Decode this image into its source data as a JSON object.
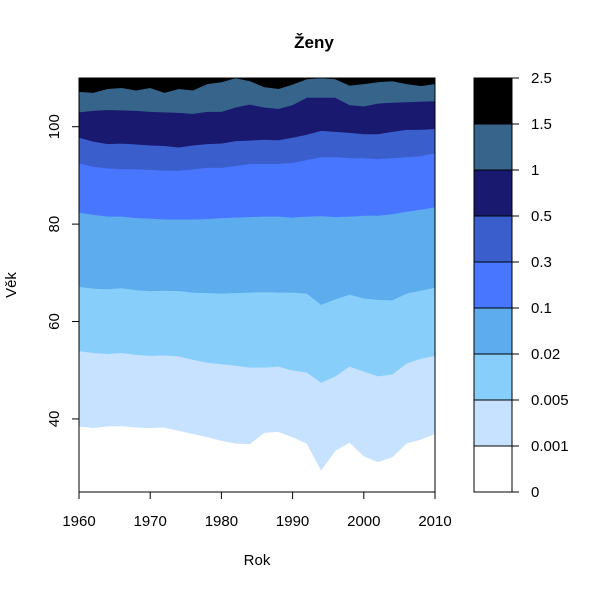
{
  "chart_data": {
    "type": "area",
    "title": "Ženy",
    "xlabel": "Rok",
    "ylabel": "Věk",
    "xlim": [
      1960,
      2010
    ],
    "ylim": [
      25,
      110
    ],
    "x_ticks": [
      "1960",
      "1970",
      "1980",
      "1990",
      "2000",
      "2010"
    ],
    "y_ticks": [
      "40",
      "60",
      "80",
      "100"
    ],
    "x_tick_values": [
      1960,
      1970,
      1980,
      1990,
      2000,
      2010
    ],
    "y_tick_values": [
      40,
      60,
      80,
      100
    ],
    "x": [
      1960,
      1962,
      1964,
      1966,
      1968,
      1970,
      1972,
      1974,
      1976,
      1978,
      1980,
      1982,
      1984,
      1986,
      1988,
      1990,
      1992,
      1994,
      1996,
      1998,
      2000,
      2002,
      2004,
      2006,
      2008,
      2010
    ],
    "legend": {
      "position": "right",
      "labels": [
        "0",
        "0.001",
        "0.005",
        "0.02",
        "0.1",
        "0.3",
        "0.5",
        "1",
        "1.5",
        "2.5"
      ],
      "colors": [
        "#FFFFFF",
        "#C6E2FF",
        "#87CEFA",
        "#5CACEE",
        "#4876FF",
        "#3A5FCD",
        "#191970",
        "#36648B",
        "#000000"
      ]
    },
    "series": [
      {
        "values": [
          38.5,
          38.2,
          38.5,
          38.6,
          38.3,
          38.2,
          38.3,
          37.6,
          37.0,
          36.3,
          35.6,
          35.0,
          34.9,
          37.2,
          37.4,
          36.3,
          35.0,
          29.5,
          33.5,
          35.2,
          32.4,
          31.2,
          32.2,
          35.0,
          35.8,
          37.0
        ]
      },
      {
        "values": [
          54.0,
          53.6,
          53.4,
          53.6,
          53.2,
          53.0,
          53.1,
          52.9,
          52.2,
          51.6,
          51.3,
          51.0,
          50.6,
          50.6,
          50.8,
          50.0,
          49.6,
          47.5,
          48.8,
          50.8,
          49.8,
          48.8,
          49.2,
          51.4,
          52.4,
          53.0
        ]
      },
      {
        "values": [
          67.2,
          66.8,
          66.7,
          66.9,
          66.5,
          66.3,
          66.4,
          66.3,
          66.0,
          65.9,
          65.8,
          65.9,
          66.0,
          66.1,
          66.0,
          66.0,
          65.8,
          63.5,
          64.6,
          65.6,
          64.8,
          64.5,
          64.4,
          65.8,
          66.4,
          67.0
        ]
      },
      {
        "values": [
          82.4,
          82.0,
          81.6,
          81.6,
          81.3,
          81.2,
          81.0,
          81.0,
          81.0,
          81.1,
          81.3,
          81.4,
          81.5,
          81.6,
          81.6,
          81.4,
          81.6,
          81.7,
          81.5,
          81.6,
          81.8,
          81.8,
          82.1,
          82.6,
          83.0,
          83.5
        ]
      },
      {
        "values": [
          92.5,
          91.8,
          91.5,
          91.3,
          91.3,
          91.2,
          91.0,
          91.0,
          91.3,
          91.6,
          91.6,
          92.0,
          92.4,
          92.4,
          92.4,
          92.6,
          93.2,
          93.8,
          93.8,
          93.6,
          93.6,
          93.4,
          93.6,
          93.8,
          94.0,
          94.6
        ]
      },
      {
        "values": [
          97.8,
          97.0,
          96.5,
          96.6,
          96.4,
          96.2,
          96.1,
          95.8,
          96.2,
          96.5,
          96.6,
          97.1,
          97.2,
          97.4,
          97.3,
          97.8,
          98.4,
          99.2,
          99.0,
          98.8,
          98.5,
          98.5,
          99.0,
          99.4,
          99.4,
          99.6
        ]
      },
      {
        "values": [
          103.0,
          103.3,
          103.5,
          103.4,
          103.3,
          103.1,
          103.0,
          102.9,
          102.7,
          103.1,
          103.1,
          104.0,
          104.6,
          104.0,
          103.7,
          104.5,
          106.0,
          106.0,
          106.0,
          104.5,
          104.2,
          104.8,
          105.0,
          105.1,
          105.2,
          105.3
        ]
      },
      {
        "values": [
          107.2,
          107.0,
          107.8,
          108.0,
          107.5,
          108.0,
          107.0,
          107.8,
          107.5,
          108.8,
          109.2,
          110.0,
          109.4,
          108.2,
          107.8,
          108.7,
          109.8,
          110.0,
          109.8,
          108.5,
          108.8,
          109.2,
          109.4,
          108.8,
          108.4,
          108.8
        ]
      },
      {
        "values": [
          110.0,
          110.0,
          110.0,
          110.0,
          110.0,
          110.0,
          110.0,
          110.0,
          110.0,
          110.0,
          110.0,
          110.0,
          110.0,
          110.0,
          110.0,
          110.0,
          110.0,
          110.0,
          110.0,
          110.0,
          110.0,
          110.0,
          110.0,
          110.0,
          110.0,
          110.0
        ]
      }
    ]
  }
}
